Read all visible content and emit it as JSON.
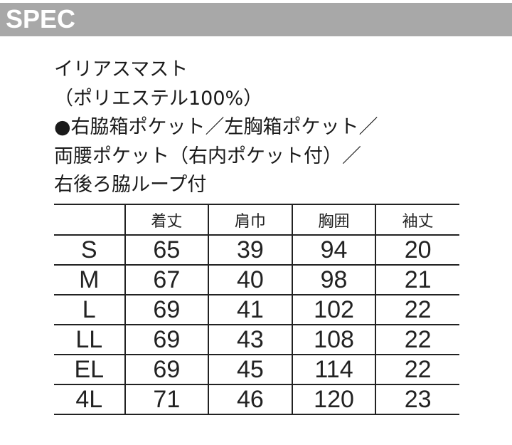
{
  "header": {
    "title": "SPEC"
  },
  "description": {
    "lines": [
      "イリアスマスト",
      "（ポリエステル100%）",
      "●右脇箱ポケット／左胸箱ポケット／",
      "両腰ポケット（右内ポケット付）／",
      "右後ろ脇ループ付"
    ]
  },
  "size_table": {
    "columns": [
      "",
      "着丈",
      "肩巾",
      "胸囲",
      "袖丈"
    ],
    "rows": [
      [
        "S",
        "65",
        "39",
        "94",
        "20"
      ],
      [
        "M",
        "67",
        "40",
        "98",
        "21"
      ],
      [
        "L",
        "69",
        "41",
        "102",
        "22"
      ],
      [
        "LL",
        "69",
        "43",
        "108",
        "22"
      ],
      [
        "EL",
        "69",
        "45",
        "114",
        "22"
      ],
      [
        "4L",
        "71",
        "46",
        "120",
        "23"
      ]
    ]
  }
}
